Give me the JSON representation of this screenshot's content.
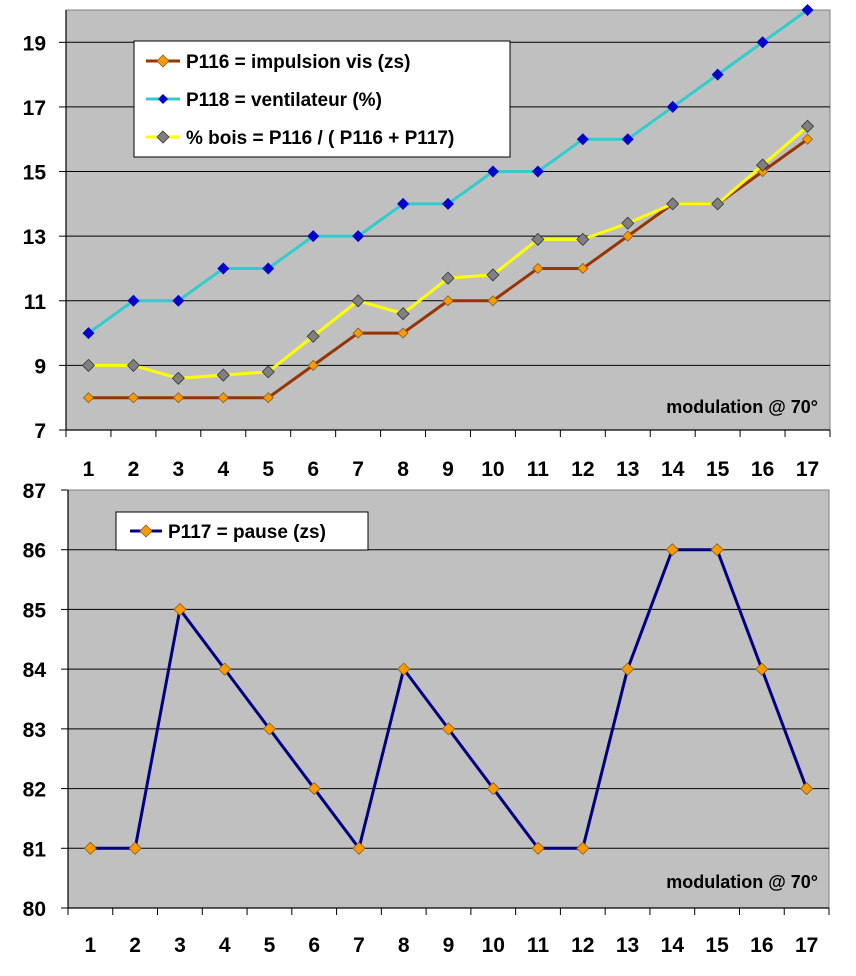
{
  "chart_data": [
    {
      "type": "line",
      "title": "",
      "xlabel": "",
      "ylabel": "",
      "categories": [
        "1",
        "2",
        "3",
        "4",
        "5",
        "6",
        "7",
        "8",
        "9",
        "10",
        "11",
        "12",
        "13",
        "14",
        "15",
        "16",
        "17"
      ],
      "ylim": [
        7,
        20
      ],
      "yticks": [
        "7",
        "9",
        "11",
        "13",
        "15",
        "17",
        "19"
      ],
      "grid": true,
      "legend_position": "top-left",
      "annotation": "modulation @ 70°",
      "series": [
        {
          "name": "P116 = impulsion vis (zs)",
          "line_color": "#993300",
          "marker_color": "#FF9900",
          "values": [
            8,
            8,
            8,
            8,
            8,
            9,
            10,
            10,
            11,
            11,
            12,
            12,
            13,
            14,
            14,
            15,
            16
          ]
        },
        {
          "name": "P118 = ventilateur (%)",
          "line_color": "#33CCCC",
          "marker_color": "#0000CC",
          "values": [
            10,
            11,
            11,
            12,
            12,
            13,
            13,
            14,
            14,
            15,
            15,
            16,
            16,
            17,
            18,
            19,
            20
          ]
        },
        {
          "name": "% bois = P116 / ( P116 + P117)",
          "line_color": "#FFFF00",
          "marker_color": "#808080",
          "values": [
            9,
            9,
            8.6,
            8.7,
            8.8,
            9.9,
            11,
            10.6,
            11.7,
            11.8,
            12.9,
            12.9,
            13.4,
            14,
            14,
            15.2,
            16.4
          ]
        }
      ]
    },
    {
      "type": "line",
      "title": "",
      "xlabel": "",
      "ylabel": "",
      "categories": [
        "1",
        "2",
        "3",
        "4",
        "5",
        "6",
        "7",
        "8",
        "9",
        "10",
        "11",
        "12",
        "13",
        "14",
        "15",
        "16",
        "17"
      ],
      "ylim": [
        80,
        87
      ],
      "yticks": [
        "80",
        "81",
        "82",
        "83",
        "84",
        "85",
        "86",
        "87"
      ],
      "grid": true,
      "legend_position": "top-left",
      "annotation": "modulation @ 70°",
      "series": [
        {
          "name": "P117 = pause (zs)",
          "line_color": "#000080",
          "marker_color": "#FF9900",
          "values": [
            81,
            81,
            85,
            84,
            83,
            82,
            81,
            84,
            83,
            82,
            81,
            81,
            84,
            86,
            86,
            84,
            82
          ]
        }
      ]
    }
  ]
}
